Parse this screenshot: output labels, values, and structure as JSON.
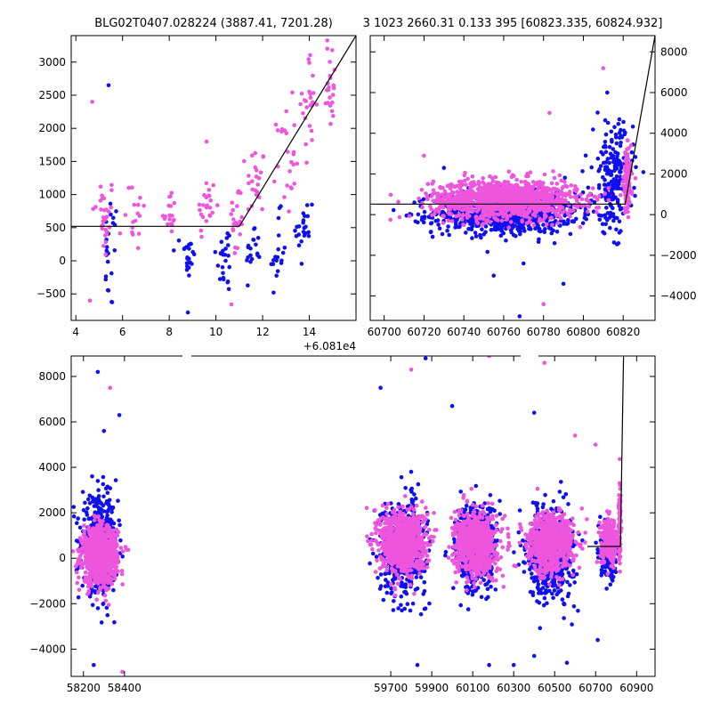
{
  "title_left": "BLG02T0407.028224 (3887.41, 7201.28)",
  "title_right": "3 1023 2660.31 0.133 395 [60823.335, 60824.932]",
  "colors": {
    "blue": "#1010ee",
    "magenta": "#ee55dd",
    "line": "#000000"
  },
  "chart_data": [
    {
      "id": "top-left",
      "type": "scatter",
      "x_offset_label": "+6.081e4",
      "xlim": [
        3.8,
        16.0
      ],
      "ylim": [
        -900,
        3400
      ],
      "xticks": [
        4,
        6,
        8,
        10,
        12,
        14
      ],
      "yticks": [
        -500,
        0,
        500,
        1000,
        1500,
        2000,
        2500,
        3000
      ],
      "model_line": [
        [
          3.8,
          520
        ],
        [
          11.0,
          520
        ],
        [
          16.0,
          3400
        ]
      ],
      "clusters": [
        {
          "x": 5.2,
          "spread": 0.5,
          "series": "magenta",
          "ymin": 0,
          "ymax": 1300,
          "n": 30
        },
        {
          "x": 5.5,
          "spread": 0.3,
          "series": "blue",
          "ymin": -800,
          "ymax": 1000,
          "n": 22
        },
        {
          "x": 6.6,
          "spread": 0.5,
          "series": "magenta",
          "ymin": 100,
          "ymax": 1300,
          "n": 16
        },
        {
          "x": 8.0,
          "spread": 0.3,
          "series": "magenta",
          "ymin": 400,
          "ymax": 1100,
          "n": 18
        },
        {
          "x": 8.8,
          "spread": 0.3,
          "series": "blue",
          "ymin": -400,
          "ymax": 500,
          "n": 22
        },
        {
          "x": 9.6,
          "spread": 0.4,
          "series": "magenta",
          "ymin": 300,
          "ymax": 1300,
          "n": 24
        },
        {
          "x": 10.4,
          "spread": 0.4,
          "series": "blue",
          "ymin": -500,
          "ymax": 600,
          "n": 24
        },
        {
          "x": 10.9,
          "spread": 0.3,
          "series": "magenta",
          "ymin": 0,
          "ymax": 1200,
          "n": 24
        },
        {
          "x": 11.7,
          "spread": 0.4,
          "series": "magenta",
          "ymin": 600,
          "ymax": 1800,
          "n": 22
        },
        {
          "x": 11.6,
          "spread": 0.3,
          "series": "blue",
          "ymin": -300,
          "ymax": 600,
          "n": 18
        },
        {
          "x": 12.6,
          "spread": 0.4,
          "series": "blue",
          "ymin": -500,
          "ymax": 700,
          "n": 18
        },
        {
          "x": 13.0,
          "spread": 0.4,
          "series": "magenta",
          "ymin": 700,
          "ymax": 2400,
          "n": 24
        },
        {
          "x": 13.8,
          "spread": 0.4,
          "series": "blue",
          "ymin": -200,
          "ymax": 1200,
          "n": 22
        },
        {
          "x": 14.0,
          "spread": 0.3,
          "series": "magenta",
          "ymin": 1600,
          "ymax": 3100,
          "n": 24
        },
        {
          "x": 14.9,
          "spread": 0.3,
          "series": "magenta",
          "ymin": 1900,
          "ymax": 3400,
          "n": 22
        }
      ],
      "points": [
        {
          "x": 5.4,
          "y": 2650,
          "series": "blue"
        },
        {
          "x": 4.7,
          "y": 2400,
          "series": "magenta"
        },
        {
          "x": 9.6,
          "y": 1800,
          "series": "magenta"
        },
        {
          "x": 8.8,
          "y": -780,
          "series": "blue"
        },
        {
          "x": 4.6,
          "y": -600,
          "series": "magenta"
        }
      ]
    },
    {
      "id": "top-right",
      "type": "scatter",
      "y_axis_side": "right",
      "xlim": [
        60693,
        60836
      ],
      "ylim": [
        -5200,
        8800
      ],
      "xticks": [
        60700,
        60720,
        60740,
        60760,
        60780,
        60800,
        60820
      ],
      "yticks": [
        -4000,
        -2000,
        0,
        2000,
        4000,
        6000,
        8000
      ],
      "model_line": [
        [
          60693,
          520
        ],
        [
          60821,
          520
        ],
        [
          60836,
          8800
        ]
      ],
      "clusters": [
        {
          "x": 60761,
          "spread": 36,
          "series": "blue",
          "ymin": -900,
          "ymax": 1100,
          "n": 900
        },
        {
          "x": 60761,
          "spread": 36,
          "series": "magenta",
          "ymin": -200,
          "ymax": 1700,
          "n": 1200
        },
        {
          "x": 60815,
          "spread": 10,
          "series": "blue",
          "ymin": -800,
          "ymax": 4500,
          "n": 200
        },
        {
          "x": 60822,
          "spread": 2,
          "series": "magenta",
          "ymin": 0,
          "ymax": 3200,
          "n": 140
        }
      ],
      "points": [
        {
          "x": 60770,
          "y": -2400,
          "series": "blue"
        },
        {
          "x": 60768,
          "y": -5000,
          "series": "blue"
        },
        {
          "x": 60780,
          "y": -4400,
          "series": "magenta"
        },
        {
          "x": 60783,
          "y": 5000,
          "series": "magenta"
        },
        {
          "x": 60720,
          "y": 2900,
          "series": "magenta"
        },
        {
          "x": 60730,
          "y": 2300,
          "series": "blue"
        },
        {
          "x": 60810,
          "y": 7200,
          "series": "magenta"
        },
        {
          "x": 60812,
          "y": 6000,
          "series": "blue"
        },
        {
          "x": 60755,
          "y": -3000,
          "series": "blue"
        },
        {
          "x": 60790,
          "y": -3400,
          "series": "blue"
        }
      ]
    },
    {
      "id": "bottom",
      "type": "scatter",
      "xlim": [
        58140,
        60990
      ],
      "ylim": [
        -5200,
        8900
      ],
      "xticks": [
        58200,
        58400,
        59700,
        59900,
        60100,
        60300,
        60500,
        60700,
        60900
      ],
      "yticks": [
        -4000,
        -2000,
        0,
        2000,
        4000,
        6000,
        8000
      ],
      "model_line": [
        [
          60660,
          520
        ],
        [
          60821,
          520
        ],
        [
          60836,
          8900
        ]
      ],
      "clusters": [
        {
          "x": 58280,
          "spread": 85,
          "series": "blue",
          "ymin": -1400,
          "ymax": 2600,
          "n": 500
        },
        {
          "x": 58280,
          "spread": 85,
          "series": "magenta",
          "ymin": -1100,
          "ymax": 1400,
          "n": 900
        },
        {
          "x": 59760,
          "spread": 110,
          "series": "blue",
          "ymin": -1500,
          "ymax": 2500,
          "n": 550
        },
        {
          "x": 59760,
          "spread": 110,
          "series": "magenta",
          "ymin": -600,
          "ymax": 2100,
          "n": 900
        },
        {
          "x": 60115,
          "spread": 100,
          "series": "blue",
          "ymin": -1500,
          "ymax": 2400,
          "n": 500
        },
        {
          "x": 60115,
          "spread": 100,
          "series": "magenta",
          "ymin": -700,
          "ymax": 1900,
          "n": 800
        },
        {
          "x": 60480,
          "spread": 110,
          "series": "blue",
          "ymin": -1800,
          "ymax": 2200,
          "n": 520
        },
        {
          "x": 60480,
          "spread": 110,
          "series": "magenta",
          "ymin": -600,
          "ymax": 1900,
          "n": 800
        },
        {
          "x": 60765,
          "spread": 40,
          "series": "blue",
          "ymin": -900,
          "ymax": 1200,
          "n": 200
        },
        {
          "x": 60765,
          "spread": 40,
          "series": "magenta",
          "ymin": -200,
          "ymax": 1700,
          "n": 250
        },
        {
          "x": 60818,
          "spread": 6,
          "series": "magenta",
          "ymin": 0,
          "ymax": 3400,
          "n": 80
        }
      ],
      "points": [
        {
          "x": 58270,
          "y": 8200,
          "series": "blue"
        },
        {
          "x": 58330,
          "y": 7500,
          "series": "magenta"
        },
        {
          "x": 58375,
          "y": 6300,
          "series": "blue"
        },
        {
          "x": 58300,
          "y": 5600,
          "series": "blue"
        },
        {
          "x": 58390,
          "y": -5000,
          "series": "magenta"
        },
        {
          "x": 58250,
          "y": -4700,
          "series": "blue"
        },
        {
          "x": 59870,
          "y": 8800,
          "series": "blue"
        },
        {
          "x": 59800,
          "y": 8300,
          "series": "magenta"
        },
        {
          "x": 59650,
          "y": 7500,
          "series": "blue"
        },
        {
          "x": 59830,
          "y": -4700,
          "series": "blue"
        },
        {
          "x": 60000,
          "y": 6700,
          "series": "blue"
        },
        {
          "x": 60180,
          "y": 8900,
          "series": "magenta"
        },
        {
          "x": 60180,
          "y": -4700,
          "series": "blue"
        },
        {
          "x": 60300,
          "y": -4700,
          "series": "blue"
        },
        {
          "x": 60450,
          "y": 8600,
          "series": "magenta"
        },
        {
          "x": 60400,
          "y": 6400,
          "series": "blue"
        },
        {
          "x": 60560,
          "y": -4600,
          "series": "blue"
        },
        {
          "x": 60400,
          "y": -4300,
          "series": "blue"
        },
        {
          "x": 60600,
          "y": 5400,
          "series": "magenta"
        },
        {
          "x": 60700,
          "y": 5000,
          "series": "magenta"
        },
        {
          "x": 60710,
          "y": -3600,
          "series": "blue"
        }
      ]
    }
  ]
}
